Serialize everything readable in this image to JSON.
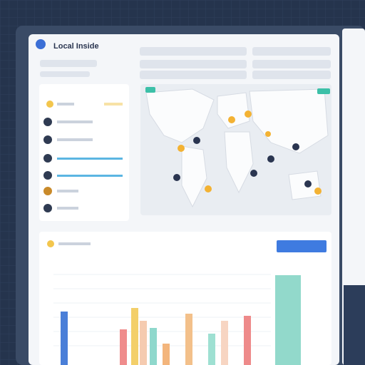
{
  "header": {
    "title": "Local Inside"
  },
  "bar_chart": {
    "type": "bar",
    "values": [
      75,
      50,
      80,
      62,
      52,
      30,
      72,
      44,
      62,
      69,
      126
    ],
    "colors": [
      "#4a7fd8",
      "#ef8c8c",
      "#f3cf6a",
      "#f5cbb0",
      "#8fd8cc",
      "#f3b57c",
      "#f3c08a",
      "#9ee0d2",
      "#f7d5c2",
      "#ee8a8a",
      "#92d9cb"
    ],
    "ylim": [
      0,
      130
    ]
  }
}
